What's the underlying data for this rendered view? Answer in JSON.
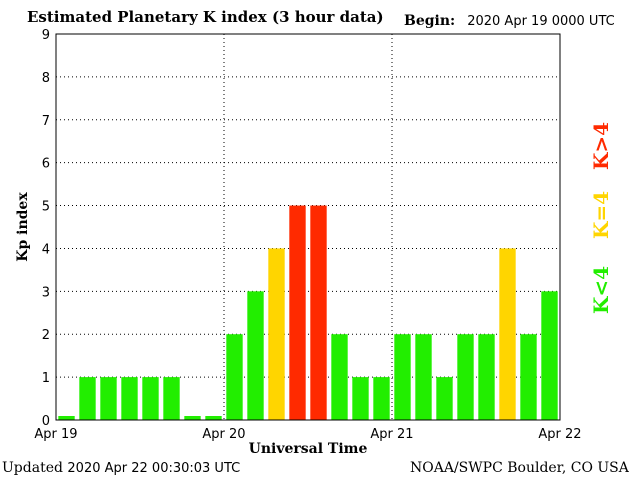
{
  "header": {
    "title": "Estimated Planetary K index (3 hour data)",
    "begin_label": "Begin:",
    "begin_value": "2020 Apr 19 0000 UTC"
  },
  "footer": {
    "updated_label": "Updated",
    "updated_value": "2020 Apr 22 00:30:03 UTC",
    "credit": "NOAA/SWPC Boulder, CO USA"
  },
  "colors": {
    "green": "#22ee00",
    "yellow": "#ffd500",
    "red": "#ff2a00"
  },
  "legend": [
    {
      "label": "K<4",
      "color": "#22ee00"
    },
    {
      "label": "K=4",
      "color": "#ffd500"
    },
    {
      "label": "K>4",
      "color": "#ff2a00"
    }
  ],
  "chart_data": {
    "type": "bar",
    "title": "Estimated Planetary K index (3 hour data)",
    "xlabel": "Universal Time",
    "ylabel": "Kp index",
    "ylim": [
      0,
      9
    ],
    "yticks": [
      0,
      1,
      2,
      3,
      4,
      5,
      6,
      7,
      8,
      9
    ],
    "xticks": [
      "Apr 19",
      "Apr 20",
      "Apr 21",
      "Apr 22"
    ],
    "grid": true,
    "legend_placement": "right",
    "values": [
      0,
      1,
      1,
      1,
      1,
      1,
      0,
      0,
      2,
      3,
      4,
      5,
      5,
      2,
      1,
      1,
      2,
      2,
      1,
      2,
      2,
      4,
      2,
      3
    ]
  }
}
